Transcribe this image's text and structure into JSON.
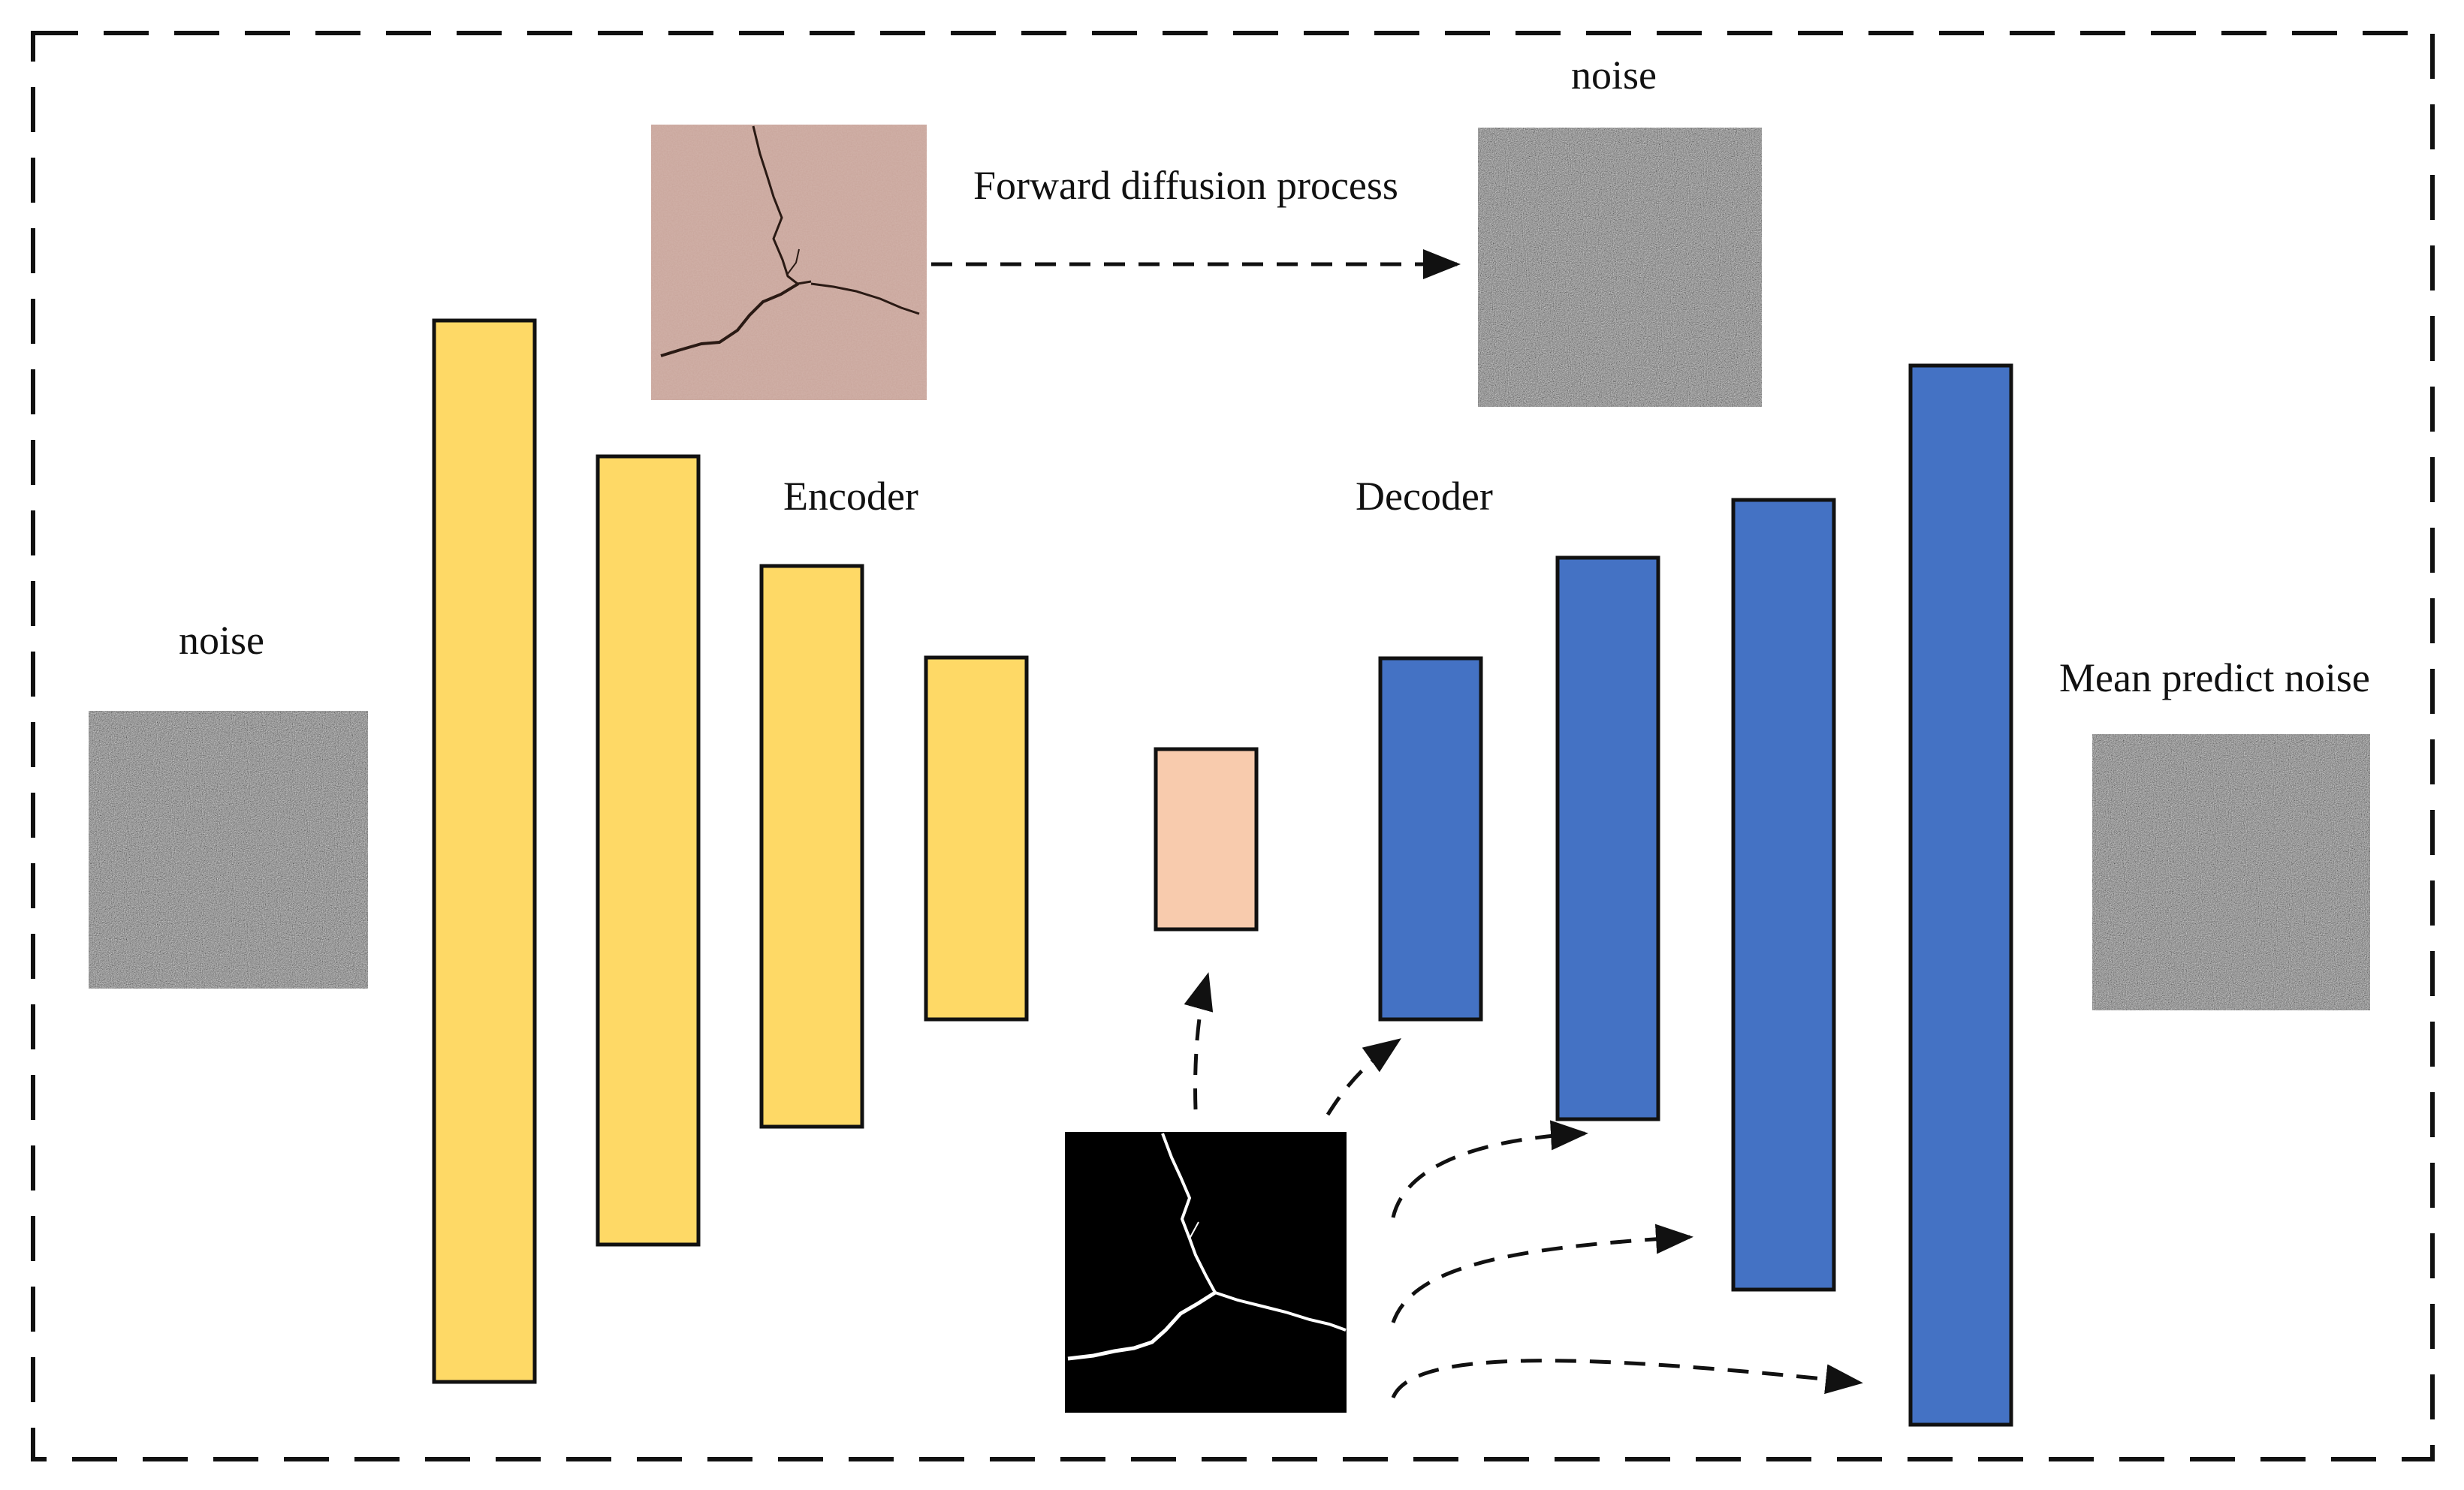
{
  "labels": {
    "noise_left": "noise",
    "noise_top": "noise",
    "forward_process": "Forward diffusion process",
    "encoder": "Encoder",
    "decoder": "Decoder",
    "mean_predict": "Mean predict noise"
  },
  "colors": {
    "encoder_fill": "#FED966",
    "bottleneck_fill": "#F8CBAD",
    "decoder_fill": "#4472C4",
    "block_stroke": "#111111",
    "noise_base": "#808080",
    "crack_photo_base": "#C8A49A",
    "crack_mask_base": "#000000",
    "frame_stroke": "#111111"
  },
  "encoder_block_count": 4,
  "decoder_block_count": 4
}
